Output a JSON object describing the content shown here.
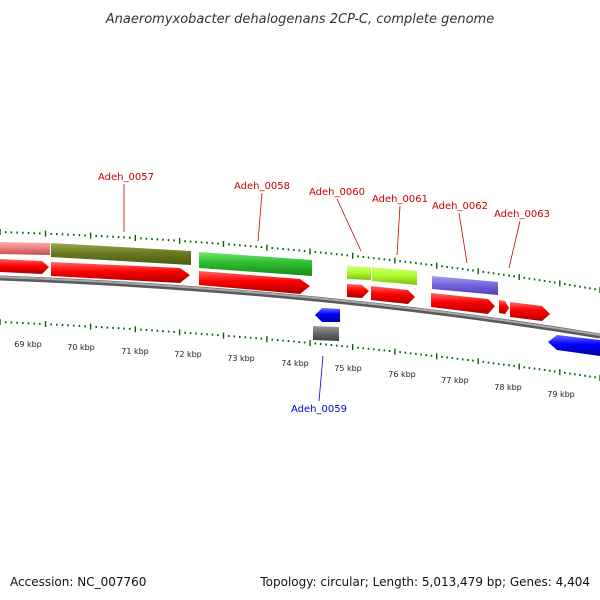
{
  "title": "Anaeromyxobacter dehalogenans 2CP-C, complete genome",
  "footer": {
    "accession": "Accession: NC_007760",
    "topology": "Topology: circular; Length: 5,013,479 bp; Genes: 4,404"
  },
  "colors": {
    "forward_label": "#cc0000",
    "reverse_label": "#0000cc",
    "ticks": "#006600",
    "backbone": "#808080",
    "cds": "#ff0000",
    "cds_reverse": "#0000ff"
  },
  "scale": {
    "labels": [
      "69 kbp",
      "70 kbp",
      "71 kbp",
      "72 kbp",
      "73 kbp",
      "74 kbp",
      "75 kbp",
      "76 kbp",
      "77 kbp",
      "78 kbp",
      "79 kbp"
    ]
  },
  "genes": [
    {
      "name": "Adeh_0057",
      "strand": "forward",
      "color": "#6b8e23"
    },
    {
      "name": "Adeh_0058",
      "strand": "forward",
      "color": "#32cd32"
    },
    {
      "name": "Adeh_0059",
      "strand": "reverse",
      "color": "#606060"
    },
    {
      "name": "Adeh_0060",
      "strand": "forward",
      "color": "#adff2f"
    },
    {
      "name": "Adeh_0061",
      "strand": "forward",
      "color": "#adff2f"
    },
    {
      "name": "Adeh_0062",
      "strand": "forward",
      "color": "#7b68ee"
    },
    {
      "name": "Adeh_0063",
      "strand": "forward",
      "color": "#ff0000"
    }
  ]
}
